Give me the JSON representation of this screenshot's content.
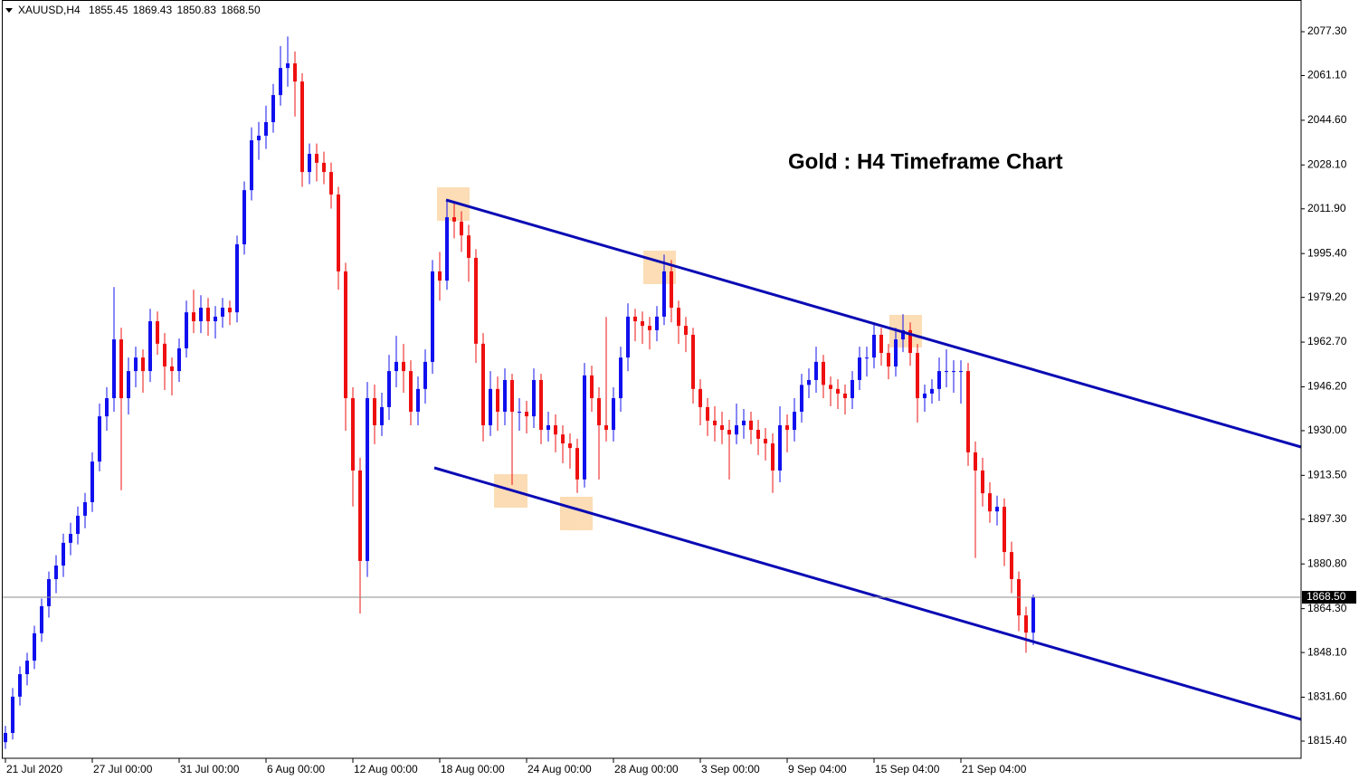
{
  "chart_data": {
    "type": "candlestick",
    "title": "Gold : H4 Timeframe Chart",
    "header": {
      "symbol": "XAUUSD,H4",
      "quote": [
        1855.45,
        1869.43,
        1850.83,
        {
          "value": 1868.5,
          "label": "1868.50"
        }
      ]
    },
    "up_color": "#1010ee",
    "down_color": "#ee1010",
    "last_price": {
      "value": 1868.5,
      "label": "1868.50"
    },
    "ylim": [
      1809.05,
      2089.0
    ],
    "yticks": [
      {
        "value": 2077.3,
        "label": "2077.30"
      },
      {
        "value": 2061.1,
        "label": "2061.10"
      },
      {
        "value": 2044.6,
        "label": "2044.60"
      },
      {
        "value": 2028.1,
        "label": "2028.10"
      },
      {
        "value": 2011.9,
        "label": "2011.90"
      },
      {
        "value": 1995.4,
        "label": "1995.40"
      },
      {
        "value": 1979.2,
        "label": "1979.20"
      },
      {
        "value": 1962.7,
        "label": "1962.70"
      },
      {
        "value": 1946.2,
        "label": "1946.20"
      },
      {
        "value": 1930.0,
        "label": "1930.00"
      },
      {
        "value": 1913.5,
        "label": "1913.50"
      },
      {
        "value": 1897.3,
        "label": "1897.30"
      },
      {
        "value": 1880.8,
        "label": "1880.80"
      },
      {
        "value": 1864.3,
        "label": "1864.30"
      },
      {
        "value": 1848.1,
        "label": "1848.10"
      },
      {
        "value": 1831.6,
        "label": "1831.60"
      },
      {
        "value": 1815.4,
        "label": "1815.40"
      }
    ],
    "categories": [
      "21 Jul 2020",
      null,
      null,
      null,
      null,
      null,
      null,
      null,
      null,
      null,
      null,
      null,
      "27 Jul 00:00",
      null,
      null,
      null,
      null,
      null,
      null,
      null,
      null,
      null,
      null,
      null,
      "31 Jul 00:00",
      null,
      null,
      null,
      null,
      null,
      null,
      null,
      null,
      null,
      null,
      null,
      "6 Aug 00:00",
      null,
      null,
      null,
      null,
      null,
      null,
      null,
      null,
      null,
      null,
      null,
      "12 Aug 00:00",
      null,
      null,
      null,
      null,
      null,
      null,
      null,
      null,
      null,
      null,
      null,
      "18 Aug 00:00",
      null,
      null,
      null,
      null,
      null,
      null,
      null,
      null,
      null,
      null,
      null,
      "24 Aug 00:00",
      null,
      null,
      null,
      null,
      null,
      null,
      null,
      null,
      null,
      null,
      null,
      "28 Aug 00:00",
      null,
      null,
      null,
      null,
      null,
      null,
      null,
      null,
      null,
      null,
      null,
      "3 Sep 00:00",
      null,
      null,
      null,
      null,
      null,
      null,
      null,
      null,
      null,
      null,
      null,
      "9 Sep 04:00",
      null,
      null,
      null,
      null,
      null,
      null,
      null,
      null,
      null,
      null,
      null,
      "15 Sep 04:00",
      null,
      null,
      null,
      null,
      null,
      null,
      null,
      null,
      null,
      null,
      null,
      "21 Sep 04:00",
      null,
      null,
      null,
      null,
      null,
      null,
      null,
      null,
      null,
      null
    ],
    "ohlc": [
      [
        1815.0,
        1821.0,
        1812.5,
        1818.4
      ],
      [
        1818.4,
        1835.0,
        1816.0,
        1831.8
      ],
      [
        1831.8,
        1843.0,
        1828.5,
        1840.1
      ],
      [
        1840.1,
        1848.0,
        1836.0,
        1845.1
      ],
      [
        1845.1,
        1858.0,
        1842.0,
        1855.2
      ],
      [
        1855.2,
        1868.0,
        1852.0,
        1865.2
      ],
      [
        1865.2,
        1878.0,
        1861.0,
        1875.2
      ],
      [
        1875.2,
        1884.0,
        1870.0,
        1880.2
      ],
      [
        1880.2,
        1892.0,
        1876.0,
        1888.6
      ],
      [
        1888.6,
        1896.0,
        1884.0,
        1891.9
      ],
      [
        1891.9,
        1902.0,
        1888.0,
        1898.6
      ],
      [
        1898.6,
        1907.0,
        1894.0,
        1903.6
      ],
      [
        1903.6,
        1922.0,
        1900.0,
        1918.6
      ],
      [
        1918.6,
        1940.0,
        1915.0,
        1935.3
      ],
      [
        1935.3,
        1946.0,
        1930.0,
        1942.0
      ],
      [
        1942.0,
        1983.0,
        1937.0,
        1963.7
      ],
      [
        1963.7,
        1968.0,
        1908.0,
        1942.0
      ],
      [
        1942.0,
        1957.0,
        1936.0,
        1952.0
      ],
      [
        1952.0,
        1961.0,
        1946.0,
        1957.0
      ],
      [
        1957.0,
        1960.0,
        1944.0,
        1952.0
      ],
      [
        1952.0,
        1975.0,
        1948.0,
        1970.4
      ],
      [
        1970.4,
        1974.0,
        1958.0,
        1962.1
      ],
      [
        1962.1,
        1966.0,
        1945.0,
        1953.7
      ],
      [
        1953.7,
        1957.0,
        1943.0,
        1952.0
      ],
      [
        1952.0,
        1964.0,
        1948.0,
        1960.4
      ],
      [
        1960.4,
        1978.0,
        1957.0,
        1973.7
      ],
      [
        1973.7,
        1982.0,
        1966.0,
        1970.4
      ],
      [
        1970.4,
        1980.0,
        1966.0,
        1975.4
      ],
      [
        1975.4,
        1979.0,
        1965.0,
        1970.4
      ],
      [
        1970.4,
        1976.0,
        1964.0,
        1972.1
      ],
      [
        1972.1,
        1979.0,
        1968.0,
        1975.4
      ],
      [
        1975.4,
        1978.0,
        1969.0,
        1973.7
      ],
      [
        1973.7,
        2002.0,
        1970.0,
        1998.8
      ],
      [
        1998.8,
        2022.0,
        1995.0,
        2018.8
      ],
      [
        2018.8,
        2042.0,
        2015.0,
        2037.2
      ],
      [
        2037.2,
        2044.0,
        2030.0,
        2038.9
      ],
      [
        2038.9,
        2050.0,
        2034.0,
        2043.9
      ],
      [
        2043.9,
        2058.0,
        2040.0,
        2053.9
      ],
      [
        2053.9,
        2072.0,
        2050.0,
        2063.9
      ],
      [
        2063.9,
        2075.5,
        2057.0,
        2065.6
      ],
      [
        2065.6,
        2070.0,
        2046.0,
        2058.9
      ],
      [
        2058.9,
        2062.0,
        2020.0,
        2025.5
      ],
      [
        2025.5,
        2036.0,
        2021.0,
        2032.2
      ],
      [
        2032.2,
        2036.0,
        2022.0,
        2028.9
      ],
      [
        2028.9,
        2033.0,
        2021.0,
        2025.5
      ],
      [
        2025.5,
        2029.0,
        2012.0,
        2017.2
      ],
      [
        2017.2,
        2020.0,
        1982.0,
        1988.8
      ],
      [
        1988.8,
        1992.0,
        1930.0,
        1942.0
      ],
      [
        1942.0,
        1946.0,
        1902.0,
        1915.3
      ],
      [
        1915.3,
        1920.0,
        1862.5,
        1881.9
      ],
      [
        1881.9,
        1948.0,
        1876.0,
        1942.0
      ],
      [
        1942.0,
        1947.0,
        1925.0,
        1932.0
      ],
      [
        1932.0,
        1944.0,
        1928.0,
        1938.7
      ],
      [
        1938.7,
        1958.0,
        1934.0,
        1952.0
      ],
      [
        1952.0,
        1965.0,
        1946.0,
        1955.4
      ],
      [
        1955.4,
        1962.0,
        1944.0,
        1952.0
      ],
      [
        1952.0,
        1956.0,
        1932.0,
        1937.0
      ],
      [
        1937.0,
        1950.0,
        1932.0,
        1945.4
      ],
      [
        1945.4,
        1960.0,
        1940.0,
        1955.4
      ],
      [
        1955.4,
        1993.0,
        1951.0,
        1988.8
      ],
      [
        1988.8,
        1996.0,
        1978.0,
        1985.4
      ],
      [
        1985.4,
        2015.2,
        1982.0,
        2008.8
      ],
      [
        2008.8,
        2014.0,
        2001.0,
        2007.2
      ],
      [
        2007.2,
        2011.0,
        1996.0,
        2002.1
      ],
      [
        2002.1,
        2006.0,
        1985.0,
        1993.8
      ],
      [
        1993.8,
        1997.0,
        1955.0,
        1962.1
      ],
      [
        1962.1,
        1966.0,
        1926.0,
        1932.0
      ],
      [
        1932.0,
        1952.0,
        1928.0,
        1945.4
      ],
      [
        1945.4,
        1950.0,
        1930.0,
        1937.0
      ],
      [
        1937.0,
        1953.0,
        1932.0,
        1948.7
      ],
      [
        1948.7,
        1951.0,
        1910.0,
        1937.0
      ],
      [
        1937.0,
        1942.0,
        1930.0,
        1937.0
      ],
      [
        1937.0,
        1941.0,
        1929.0,
        1935.3
      ],
      [
        1935.3,
        1953.0,
        1931.0,
        1948.7
      ],
      [
        1948.7,
        1951.0,
        1925.0,
        1930.3
      ],
      [
        1930.3,
        1937.0,
        1926.0,
        1932.0
      ],
      [
        1932.0,
        1936.0,
        1922.0,
        1928.6
      ],
      [
        1928.6,
        1932.0,
        1918.0,
        1925.3
      ],
      [
        1925.3,
        1929.0,
        1916.0,
        1923.6
      ],
      [
        1923.6,
        1927.0,
        1907.0,
        1912.0
      ],
      [
        1912.0,
        1955.0,
        1909.0,
        1950.4
      ],
      [
        1950.4,
        1954.0,
        1937.0,
        1942.0
      ],
      [
        1942.0,
        1946.0,
        1912.0,
        1932.0
      ],
      [
        1932.0,
        1972.0,
        1926.0,
        1930.3
      ],
      [
        1930.3,
        1946.0,
        1926.0,
        1942.0
      ],
      [
        1942.0,
        1961.0,
        1937.0,
        1957.0
      ],
      [
        1957.0,
        1977.0,
        1952.0,
        1972.1
      ],
      [
        1972.1,
        1975.0,
        1963.0,
        1970.4
      ],
      [
        1970.4,
        1974.0,
        1962.0,
        1968.7
      ],
      [
        1968.7,
        1972.0,
        1960.0,
        1967.1
      ],
      [
        1967.1,
        1976.0,
        1963.0,
        1972.1
      ],
      [
        1972.1,
        1995.0,
        1969.0,
        1988.8
      ],
      [
        1988.8,
        1993.0,
        1970.0,
        1975.4
      ],
      [
        1975.4,
        1978.0,
        1962.0,
        1968.7
      ],
      [
        1968.7,
        1972.0,
        1959.0,
        1965.4
      ],
      [
        1965.4,
        1968.0,
        1940.0,
        1945.4
      ],
      [
        1945.4,
        1949.0,
        1932.0,
        1938.7
      ],
      [
        1938.7,
        1942.0,
        1928.0,
        1933.7
      ],
      [
        1933.7,
        1939.0,
        1926.0,
        1932.0
      ],
      [
        1932.0,
        1937.0,
        1925.0,
        1930.3
      ],
      [
        1930.3,
        1934.0,
        1912.0,
        1928.6
      ],
      [
        1928.6,
        1940.0,
        1925.0,
        1932.0
      ],
      [
        1932.0,
        1938.0,
        1927.0,
        1933.7
      ],
      [
        1933.7,
        1937.0,
        1925.0,
        1930.3
      ],
      [
        1930.3,
        1934.0,
        1921.0,
        1927.0
      ],
      [
        1927.0,
        1931.0,
        1919.0,
        1925.3
      ],
      [
        1925.3,
        1929.0,
        1907.0,
        1915.3
      ],
      [
        1915.3,
        1939.0,
        1911.0,
        1932.0
      ],
      [
        1932.0,
        1936.0,
        1922.0,
        1930.3
      ],
      [
        1930.3,
        1942.0,
        1926.0,
        1937.0
      ],
      [
        1937.0,
        1951.0,
        1933.0,
        1946.9
      ],
      [
        1946.9,
        1953.0,
        1942.0,
        1948.7
      ],
      [
        1948.7,
        1961.0,
        1944.0,
        1955.4
      ],
      [
        1955.4,
        1958.0,
        1942.0,
        1946.9
      ],
      [
        1946.9,
        1950.0,
        1939.0,
        1945.4
      ],
      [
        1945.4,
        1949.0,
        1938.0,
        1943.7
      ],
      [
        1943.7,
        1947.0,
        1936.0,
        1942.0
      ],
      [
        1942.0,
        1952.0,
        1938.0,
        1948.7
      ],
      [
        1948.7,
        1961.0,
        1945.0,
        1957.0
      ],
      [
        1957.0,
        1961.0,
        1950.0,
        1957.0
      ],
      [
        1957.0,
        1970.0,
        1953.0,
        1965.4
      ],
      [
        1965.4,
        1968.0,
        1954.0,
        1958.7
      ],
      [
        1958.7,
        1962.0,
        1949.0,
        1953.7
      ],
      [
        1953.7,
        1968.0,
        1950.0,
        1963.7
      ],
      [
        1963.7,
        1973.0,
        1959.0,
        1967.1
      ],
      [
        1967.1,
        1970.0,
        1954.0,
        1958.7
      ],
      [
        1958.7,
        1962.0,
        1933.0,
        1942.0
      ],
      [
        1942.0,
        1947.0,
        1937.0,
        1943.7
      ],
      [
        1943.7,
        1949.0,
        1940.0,
        1945.4
      ],
      [
        1945.4,
        1957.0,
        1941.0,
        1952.0
      ],
      [
        1952.0,
        1960.0,
        1946.0,
        1952.0
      ],
      [
        1952.0,
        1956.0,
        1944.0,
        1952.0
      ],
      [
        1952.0,
        1956.0,
        1940.0,
        1952.0
      ],
      [
        1952.0,
        1955.0,
        1917.0,
        1922.0
      ],
      [
        1922.0,
        1926.0,
        1883.0,
        1915.3
      ],
      [
        1915.3,
        1920.0,
        1902.0,
        1906.9
      ],
      [
        1906.9,
        1911.0,
        1896.0,
        1900.2
      ],
      [
        1900.2,
        1906.0,
        1895.0,
        1901.9
      ],
      [
        1901.9,
        1905.0,
        1880.0,
        1885.2
      ],
      [
        1885.2,
        1889.0,
        1870.0,
        1875.2
      ],
      [
        1875.2,
        1878.0,
        1856.0,
        1861.8
      ],
      [
        1861.8,
        1865.0,
        1848.0,
        1855.45
      ],
      [
        1855.45,
        1869.43,
        1850.83,
        1868.5
      ]
    ]
  }
}
